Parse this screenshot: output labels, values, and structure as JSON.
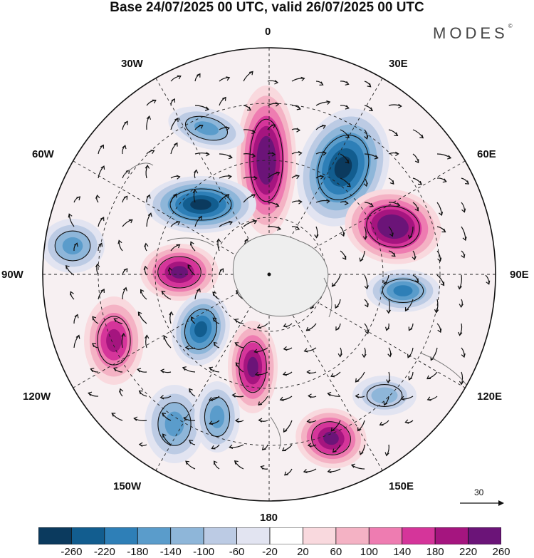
{
  "title": "Base 24/07/2025 00 UTC, valid 26/07/2025 00 UTC",
  "brand": "MODES",
  "brand_mark": "©",
  "longitude_labels": {
    "lon_0": "0",
    "lon_30e": "30E",
    "lon_60e": "60E",
    "lon_90e": "90E",
    "lon_120e": "120E",
    "lon_150e": "150E",
    "lon_180": "180",
    "lon_150w": "150W",
    "lon_120w": "120W",
    "lon_90w": "90W",
    "lon_60w": "60W",
    "lon_30w": "30W"
  },
  "reference_vector": {
    "value": "30"
  },
  "colorbar": {
    "tick_labels": [
      "-260",
      "-220",
      "-180",
      "-140",
      "-100",
      "-60",
      "-20",
      "20",
      "60",
      "100",
      "140",
      "180",
      "220",
      "260"
    ],
    "colors": [
      "#0b3a5e",
      "#125d8f",
      "#2e7fb7",
      "#5a9ccb",
      "#8eb6d9",
      "#bccbe4",
      "#e2e4f1",
      "#ffffff",
      "#f9d9de",
      "#f4b2c4",
      "#ee7cb1",
      "#d5359a",
      "#a5157f",
      "#6b1478"
    ]
  },
  "anomaly_centers": [
    {
      "name": "positive-center-0e",
      "level": 260
    },
    {
      "name": "negative-center-30e",
      "level": -260
    },
    {
      "name": "positive-center-60e",
      "level": 260
    },
    {
      "name": "negative-center-90e",
      "level": -180
    },
    {
      "name": "negative-center-60w",
      "level": -260
    },
    {
      "name": "positive-center-90w",
      "level": 220
    },
    {
      "name": "negative-center-30w",
      "level": -140
    },
    {
      "name": "negative-center-80w",
      "level": -140
    },
    {
      "name": "positive-center-110w",
      "level": 180
    },
    {
      "name": "negative-center-150w",
      "level": -220
    },
    {
      "name": "positive-center-170e",
      "level": 220
    },
    {
      "name": "negative-center-140w",
      "level": -140
    },
    {
      "name": "negative-center-160w",
      "level": -140
    },
    {
      "name": "positive-center-150e",
      "level": 220
    },
    {
      "name": "negative-center-125e",
      "level": -100
    }
  ]
}
